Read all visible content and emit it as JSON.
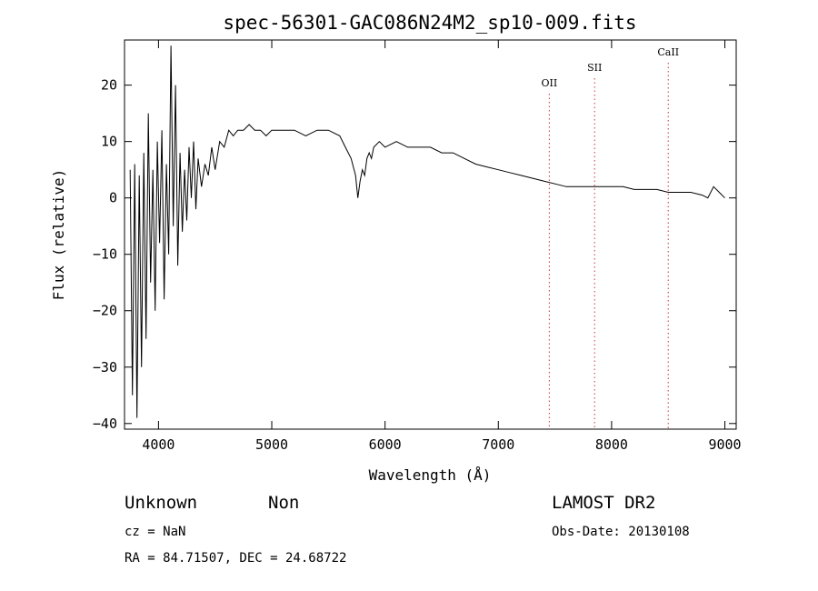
{
  "chart_data": {
    "type": "line",
    "title": "spec-56301-GAC086N24M2_sp10-009.fits",
    "xlabel": "Wavelength (Å)",
    "ylabel": "Flux (relative)",
    "xlim": [
      3700,
      9100
    ],
    "ylim": [
      -41,
      28
    ],
    "x_ticks": [
      4000,
      5000,
      6000,
      7000,
      8000,
      9000
    ],
    "y_ticks": [
      -40,
      -30,
      -20,
      -10,
      0,
      10,
      20
    ],
    "grid": false,
    "series": [
      {
        "x": [
          3750,
          3770,
          3790,
          3810,
          3830,
          3850,
          3870,
          3890,
          3910,
          3930,
          3950,
          3970,
          3990,
          4010,
          4030,
          4050,
          4070,
          4090,
          4110,
          4130,
          4150,
          4170,
          4190,
          4210,
          4230,
          4250,
          4270,
          4290,
          4310,
          4330,
          4350,
          4380,
          4410,
          4440,
          4470,
          4500,
          4540,
          4580,
          4620,
          4660,
          4700,
          4750,
          4800,
          4850,
          4900,
          4950,
          5000,
          5100,
          5200,
          5300,
          5400,
          5500,
          5600,
          5650,
          5700,
          5740,
          5760,
          5780,
          5800,
          5820,
          5840,
          5860,
          5880,
          5900,
          5950,
          6000,
          6100,
          6200,
          6300,
          6400,
          6500,
          6600,
          6700,
          6800,
          6900,
          7000,
          7100,
          7200,
          7300,
          7400,
          7500,
          7600,
          7700,
          7800,
          7900,
          8000,
          8100,
          8200,
          8300,
          8400,
          8500,
          8600,
          8700,
          8800,
          8850,
          8900,
          8950,
          9000
        ],
        "y": [
          5,
          -35,
          6,
          -39,
          4,
          -30,
          8,
          -25,
          15,
          -15,
          5,
          -20,
          10,
          -8,
          12,
          -18,
          6,
          -10,
          27,
          -5,
          20,
          -12,
          8,
          -6,
          5,
          -4,
          9,
          0,
          10,
          -2,
          7,
          2,
          6,
          4,
          9,
          5,
          10,
          9,
          12,
          11,
          12,
          12,
          13,
          12,
          12,
          11,
          12,
          12,
          12,
          11,
          12,
          12,
          11,
          9,
          7,
          4,
          0,
          3,
          5,
          4,
          7,
          8,
          7,
          9,
          10,
          9,
          10,
          9,
          9,
          9,
          8,
          8,
          7,
          6,
          5.5,
          5,
          4.5,
          4,
          3.5,
          3,
          2.5,
          2,
          2,
          2,
          2,
          2,
          2,
          1.5,
          1.5,
          1.5,
          1,
          1,
          1,
          0.5,
          0,
          2,
          1,
          0
        ]
      }
    ],
    "lines": [
      {
        "label": "OII",
        "x": 7450
      },
      {
        "label": "SII",
        "x": 7850
      },
      {
        "label": "CaII",
        "x": 8500
      }
    ],
    "line_color": "#000000",
    "marker_color": "#cc3333"
  },
  "info": {
    "class": "Unknown",
    "subclass": "Non",
    "survey": "LAMOST DR2",
    "cz": "cz = NaN",
    "obs_date": "Obs-Date: 20130108",
    "coords": "RA =  84.71507, DEC =  24.68722"
  }
}
